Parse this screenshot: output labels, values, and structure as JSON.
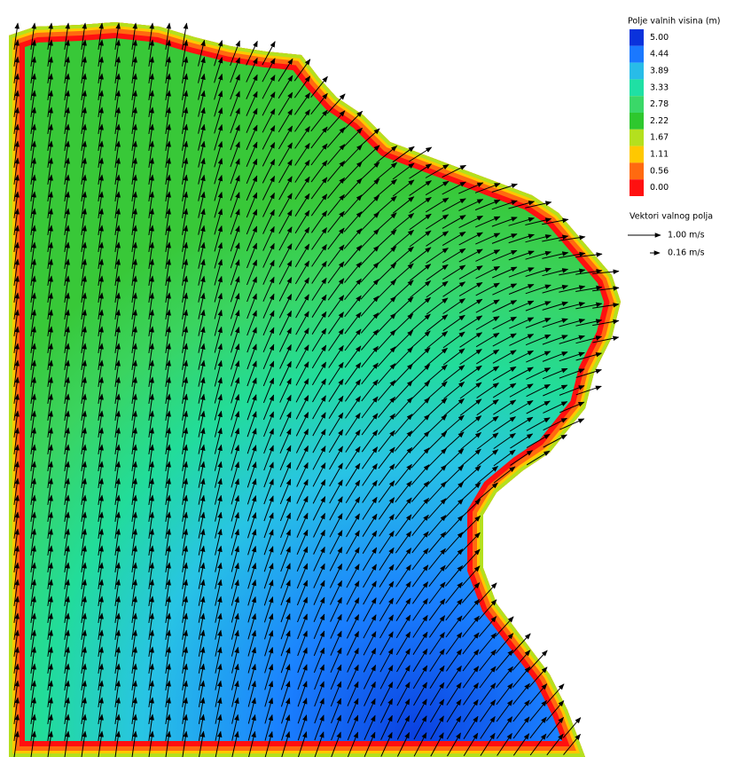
{
  "legend": {
    "title": "Polje valnih visina (m)",
    "items": [
      {
        "label": "5.00",
        "color": "#0a32dc"
      },
      {
        "label": "4.44",
        "color": "#1a78ff"
      },
      {
        "label": "3.89",
        "color": "#28bce8"
      },
      {
        "label": "3.33",
        "color": "#1fe0a4"
      },
      {
        "label": "2.78",
        "color": "#3ad868"
      },
      {
        "label": "2.22",
        "color": "#2ec82e"
      },
      {
        "label": "1.67",
        "color": "#b4e01e"
      },
      {
        "label": "1.11",
        "color": "#ffc800"
      },
      {
        "label": "0.56",
        "color": "#ff6a10"
      },
      {
        "label": "0.00",
        "color": "#ff1010"
      }
    ]
  },
  "vector_legend": {
    "title": "Vektori valnog polja",
    "items": [
      {
        "label": "1.00 m/s"
      },
      {
        "label": "0.16 m/s"
      }
    ]
  }
}
